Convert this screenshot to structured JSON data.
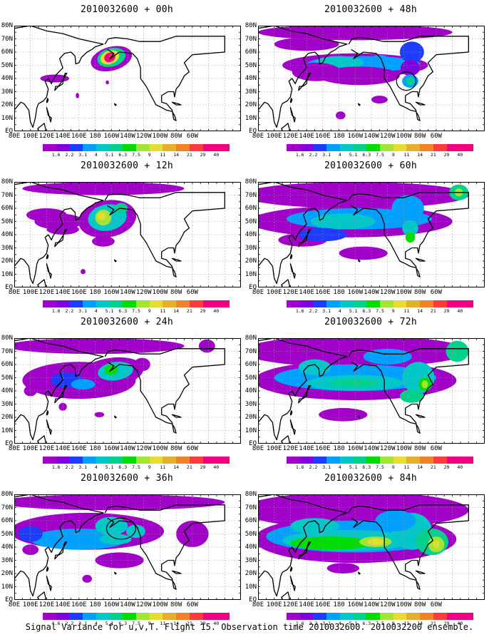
{
  "panels": [
    {
      "title": "2010032600 + 00h"
    },
    {
      "title": "2010032600 + 48h"
    },
    {
      "title": "2010032600 + 12h"
    },
    {
      "title": "2010032600 + 60h"
    },
    {
      "title": "2010032600 + 24h"
    },
    {
      "title": "2010032600 + 72h"
    },
    {
      "title": "2010032600 + 36h"
    },
    {
      "title": "2010032600 + 84h"
    }
  ],
  "lat_labels": [
    "80N",
    "70N",
    "60N",
    "50N",
    "40N",
    "30N",
    "20N",
    "10N",
    "EQ"
  ],
  "lon_labels": [
    "80E",
    "100E",
    "120E",
    "140E",
    "160E",
    "180",
    "160W",
    "140W",
    "120W",
    "100W",
    "80W",
    "60W"
  ],
  "colorbar": {
    "levels": [
      "1.6",
      "2.2",
      "3.1",
      "4",
      "5.1",
      "6.3",
      "7.5",
      "9",
      "11",
      "14",
      "21",
      "29",
      "40"
    ],
    "colors": [
      "#a000c8",
      "#8200dc",
      "#1e3cff",
      "#00a0ff",
      "#00c8c8",
      "#00d28c",
      "#00dc00",
      "#a0e632",
      "#e6dc32",
      "#e6af2d",
      "#f08228",
      "#fa3c3c",
      "#f00082"
    ]
  },
  "caption": "Signal Variance for u,v,T. Flight 15. Observation time 2010032600. 2010032200 ensemble."
}
